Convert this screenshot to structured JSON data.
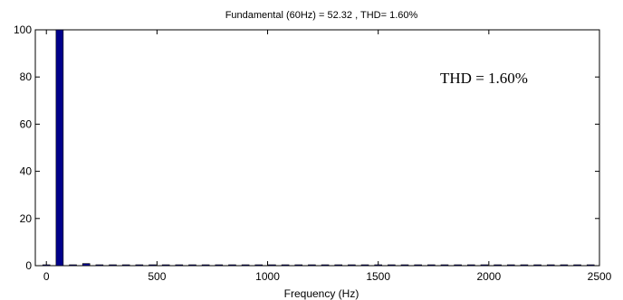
{
  "chart_data": {
    "type": "bar",
    "title": "Fundamental (60Hz) = 52.32 , THD= 1.60%",
    "xlabel": "Frequency (Hz)",
    "ylabel": "",
    "xlim": [
      -50,
      2500
    ],
    "ylim": [
      0,
      100
    ],
    "xticks": [
      0,
      500,
      1000,
      1500,
      2000,
      2500
    ],
    "yticks": [
      0,
      20,
      40,
      60,
      80,
      100
    ],
    "grid": false,
    "bar_color": "#00008b",
    "annotation": "THD = 1.60%",
    "series": [
      {
        "x": [
          0,
          60,
          120,
          180,
          240,
          300,
          360,
          420,
          480,
          540,
          600,
          660,
          720,
          780,
          840,
          900,
          960,
          1020,
          1080,
          1140,
          1200,
          1260,
          1320,
          1380,
          1440,
          1500,
          1560,
          1620,
          1680,
          1740,
          1800,
          1860,
          1920,
          1980,
          2040,
          2100,
          2160,
          2220,
          2280,
          2340,
          2400,
          2460
        ],
        "values": [
          0.3,
          100,
          0.2,
          0.9,
          0.2,
          0.3,
          0.2,
          0.2,
          0.2,
          0.2,
          0.2,
          0.2,
          0.2,
          0.2,
          0.2,
          0.2,
          0.2,
          0.2,
          0.2,
          0.2,
          0.2,
          0.2,
          0.2,
          0.2,
          0.2,
          0.2,
          0.2,
          0.2,
          0.2,
          0.2,
          0.2,
          0.2,
          0.2,
          0.2,
          0.2,
          0.2,
          0.2,
          0.2,
          0.2,
          0.2,
          0.2,
          0.2
        ]
      }
    ]
  }
}
